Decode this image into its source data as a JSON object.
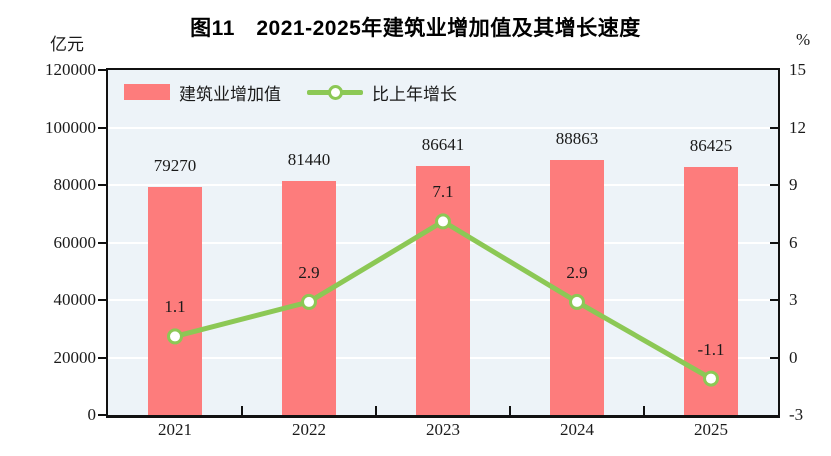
{
  "colors": {
    "bar": "#FD7C7C",
    "line": "#8CC855",
    "marker_fill": "#FFFFFF",
    "plot_bg": "#EDF3F8",
    "gridline": "#FFFFFF",
    "axis": "#111111",
    "text": "#1A1A1A"
  },
  "chart_data": {
    "type": "bar+line combo",
    "title": "图11　2021-2025年建筑业增加值及其增长速度",
    "categories": [
      "2021",
      "2022",
      "2023",
      "2024",
      "2025"
    ],
    "series": [
      {
        "name": "建筑业增加值",
        "type": "bar",
        "axis": "left",
        "values": [
          79270,
          81440,
          86641,
          88863,
          86425
        ]
      },
      {
        "name": "比上年增长",
        "type": "line",
        "axis": "right",
        "values": [
          1.1,
          2.9,
          7.1,
          2.9,
          -1.1
        ]
      }
    ],
    "left_axis": {
      "label": "亿元",
      "min": 0,
      "max": 120000,
      "step": 20000,
      "ticks": [
        "0",
        "20000",
        "40000",
        "60000",
        "80000",
        "100000",
        "120000"
      ]
    },
    "right_axis": {
      "label": "%",
      "min": -3,
      "max": 15,
      "step": 3,
      "ticks": [
        "-3",
        "0",
        "3",
        "6",
        "9",
        "12",
        "15"
      ]
    },
    "grid": true,
    "legend_position": "top-left-inside"
  }
}
